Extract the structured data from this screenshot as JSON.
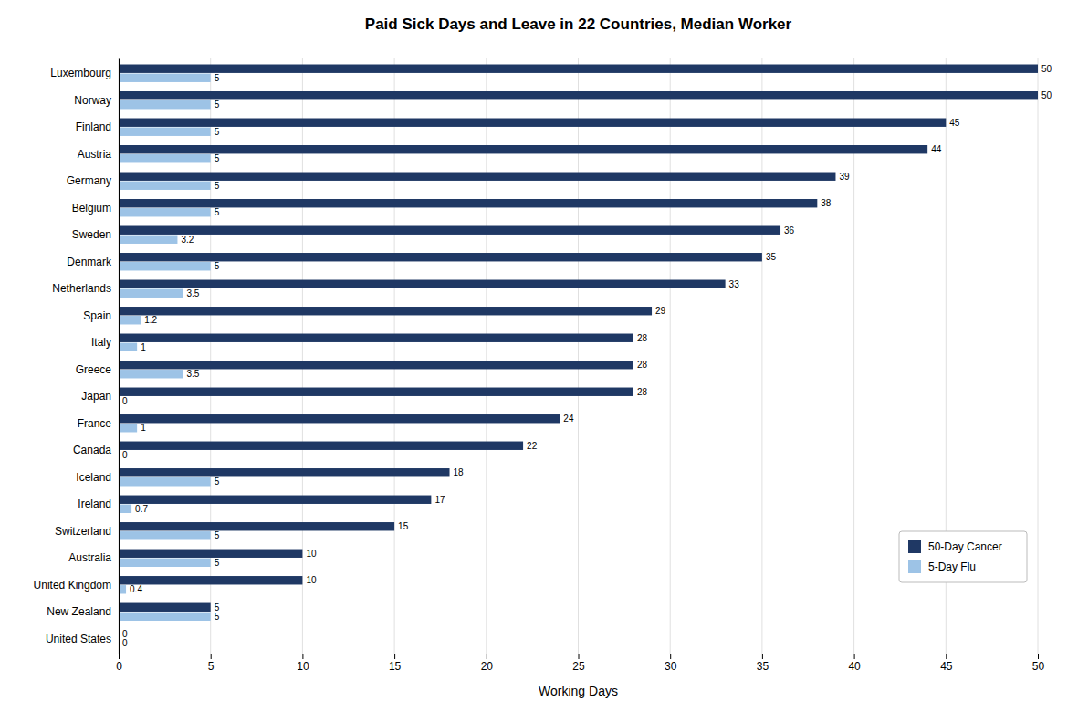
{
  "chart_data": {
    "type": "bar",
    "orientation": "horizontal",
    "title": "Paid Sick Days and Leave in 22 Countries, Median Worker",
    "x_label": "Working Days",
    "categories": [
      "United States",
      "New Zealand",
      "United Kingdom",
      "Australia",
      "Switzerland",
      "Ireland",
      "Iceland",
      "Canada",
      "France",
      "Japan",
      "Greece",
      "Italy",
      "Spain",
      "Netherlands",
      "Denmark",
      "Sweden",
      "Belgium",
      "Germany",
      "Austria",
      "Finland",
      "Norway",
      "Luxembourg"
    ],
    "series": [
      {
        "name": "50-Day Cancer",
        "color": "#1F3864",
        "values": [
          0,
          5,
          10,
          10,
          15,
          17,
          18,
          22,
          24,
          28,
          28,
          28,
          29,
          33,
          35,
          36,
          38,
          39,
          44,
          45,
          50,
          50
        ]
      },
      {
        "name": "5-Day Flu",
        "color": "#9DC3E6",
        "values": [
          0,
          5,
          0.4,
          5,
          5,
          0.7,
          5,
          0,
          1,
          0,
          3.5,
          1,
          1.2,
          3.5,
          5,
          3.2,
          5,
          5,
          5,
          5,
          5,
          5
        ]
      }
    ],
    "xlim": [
      0,
      50
    ],
    "xticks": [
      0,
      5,
      10,
      15,
      20,
      25,
      30,
      35,
      40,
      45,
      50
    ],
    "grid": true,
    "legend": "lower right",
    "data_labels": true
  }
}
